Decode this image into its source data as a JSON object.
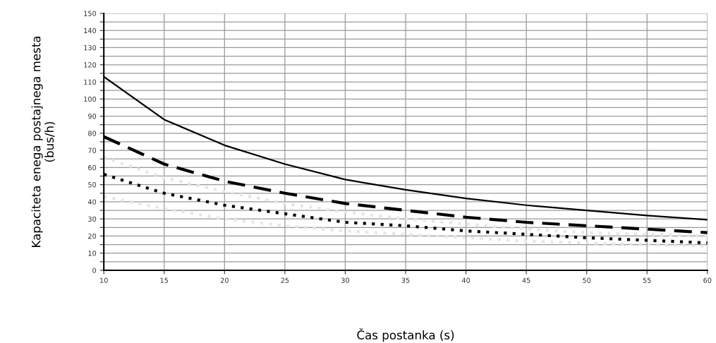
{
  "chart_data": {
    "type": "line",
    "xlabel": "Čas postanka (s)",
    "ylabel": "Kapaciteta enega postajnega mesta\n(bus/h)",
    "x": [
      10,
      15,
      20,
      25,
      30,
      35,
      40,
      45,
      50,
      55,
      60
    ],
    "series": [
      {
        "color": "#000000",
        "line_style": "solid",
        "values": [
          113,
          88,
          73,
          62,
          53,
          47,
          42,
          38,
          35,
          32,
          29.5
        ]
      },
      {
        "color": "#000000",
        "line_style": "dashed",
        "values": [
          78,
          62,
          52,
          45,
          39,
          35,
          31,
          28,
          26,
          24,
          22
        ]
      },
      {
        "color": "#000000",
        "line_style": "dotted",
        "values": [
          56,
          45,
          38,
          33,
          28,
          26,
          23,
          21,
          19,
          17.5,
          16
        ]
      },
      {
        "color": "#e6e6e6",
        "line_style": "dotted",
        "values": [
          66,
          54,
          46,
          39,
          34,
          30,
          27,
          24,
          22,
          21,
          20
        ]
      },
      {
        "color": "#e6e6e6",
        "line_style": "dotted",
        "values": [
          43,
          36,
          30,
          26,
          23,
          21,
          19,
          17,
          16,
          15,
          14
        ]
      }
    ],
    "xlim": [
      10,
      60
    ],
    "xticks": [
      10,
      15,
      20,
      25,
      30,
      35,
      40,
      45,
      50,
      55,
      60
    ],
    "ylim": [
      0,
      150
    ],
    "yticks": [
      0,
      {
        "value": 5,
        "label": null
      },
      10,
      {
        "value": 15,
        "label": null
      },
      20,
      {
        "value": 25,
        "label": null
      },
      30,
      {
        "value": 35,
        "label": null
      },
      40,
      {
        "value": 45,
        "label": null
      },
      50,
      {
        "value": 55,
        "label": null
      },
      60,
      {
        "value": 65,
        "label": null
      },
      70,
      {
        "value": 75,
        "label": null
      },
      80,
      {
        "value": 85,
        "label": null
      },
      90,
      {
        "value": 95,
        "label": null
      },
      100,
      {
        "value": 105,
        "label": null
      },
      110,
      {
        "value": 115,
        "label": null
      },
      120,
      {
        "value": 125,
        "label": null
      },
      130,
      {
        "value": 135,
        "label": null
      },
      140,
      {
        "value": 145,
        "label": null
      },
      150
    ],
    "grid": true
  }
}
